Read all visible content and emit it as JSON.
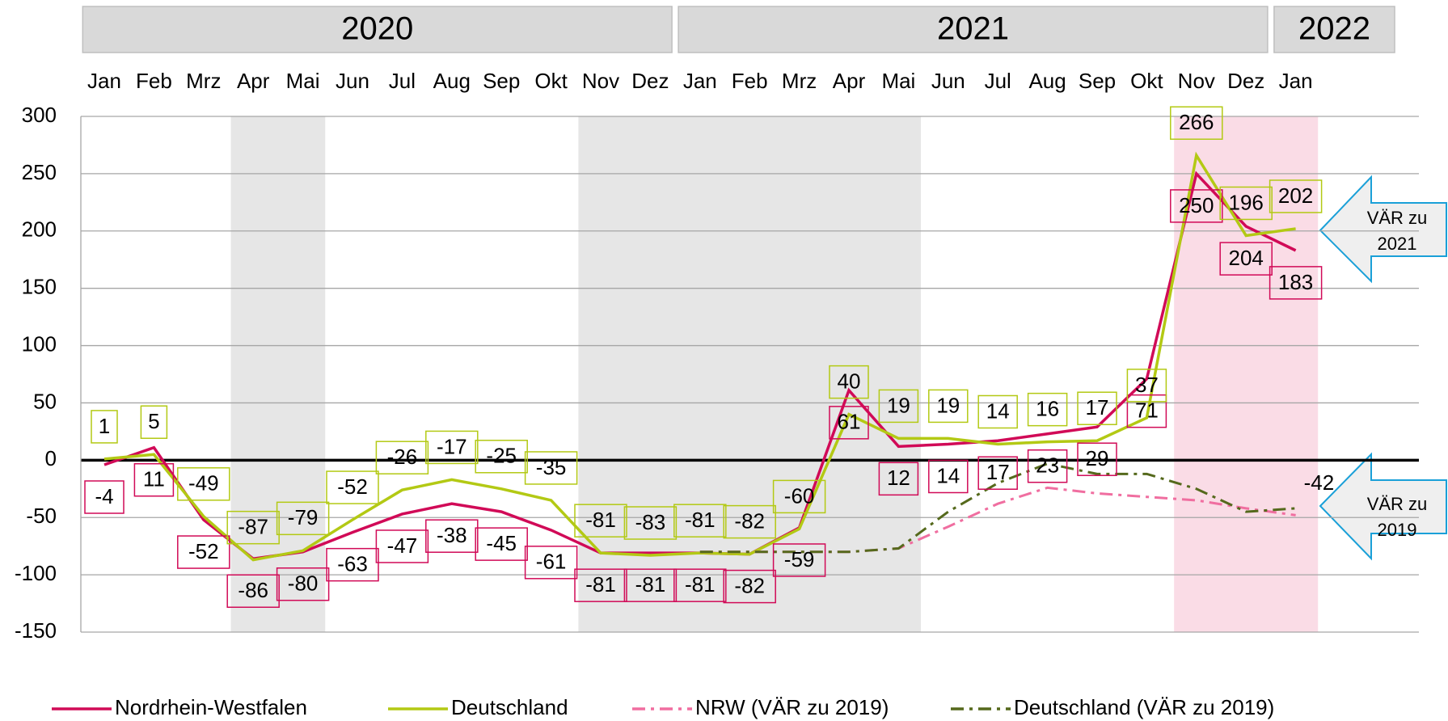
{
  "chart_data": {
    "type": "line",
    "categories": [
      "Jan",
      "Feb",
      "Mrz",
      "Apr",
      "Mai",
      "Jun",
      "Jul",
      "Aug",
      "Sep",
      "Okt",
      "Nov",
      "Dez",
      "Jan",
      "Feb",
      "Mrz",
      "Apr",
      "Mai",
      "Jun",
      "Jul",
      "Aug",
      "Sep",
      "Okt",
      "Nov",
      "Dez",
      "Jan"
    ],
    "years": [
      {
        "label": "2020",
        "start": 0,
        "end": 11
      },
      {
        "label": "2021",
        "start": 12,
        "end": 23
      },
      {
        "label": "2022",
        "start": 24,
        "end": 24
      }
    ],
    "shaded_ranges": [
      {
        "start": 3,
        "end": 4,
        "color": "#e6e6e6"
      },
      {
        "start": 10,
        "end": 16,
        "color": "#e6e6e6"
      },
      {
        "start": 22,
        "end": 24,
        "color": "#fadce6"
      }
    ],
    "series": [
      {
        "name": "Nordrhein-Westfalen",
        "color": "#d10a57",
        "style": "solid",
        "data_labels": "all",
        "values": [
          -4,
          11,
          -52,
          -86,
          -80,
          -63,
          -47,
          -38,
          -45,
          -61,
          -81,
          -81,
          -81,
          -82,
          -59,
          61,
          12,
          14,
          17,
          23,
          29,
          71,
          250,
          204,
          183
        ]
      },
      {
        "name": "Deutschland",
        "color": "#b3c914",
        "style": "solid",
        "data_labels": "all",
        "values": [
          1,
          5,
          -49,
          -87,
          -79,
          -52,
          -26,
          -17,
          -25,
          -35,
          -81,
          -83,
          -81,
          -82,
          -60,
          40,
          19,
          19,
          14,
          16,
          17,
          37,
          266,
          196,
          202
        ]
      },
      {
        "name": "NRW (VÄR zu 2019)",
        "color": "#f06ea0",
        "style": "dashdot",
        "data_labels": "none",
        "values": [
          null,
          null,
          null,
          null,
          null,
          null,
          null,
          null,
          null,
          null,
          null,
          null,
          -80,
          -80,
          -80,
          -80,
          -77,
          -58,
          -38,
          -24,
          -29,
          -32,
          -35,
          -42,
          -48
        ]
      },
      {
        "name": "Deutschland (VÄR zu 2019)",
        "color": "#55691c",
        "style": "dashdot",
        "data_labels": "last",
        "values": [
          null,
          null,
          null,
          null,
          null,
          null,
          null,
          null,
          null,
          null,
          null,
          null,
          -80,
          -80,
          -80,
          -80,
          -77,
          -45,
          -20,
          -3,
          -12,
          -12,
          -25,
          -45,
          -42
        ]
      }
    ],
    "ylim": [
      -150,
      300
    ],
    "yticks": [
      -150,
      -100,
      -50,
      0,
      50,
      100,
      150,
      200,
      250,
      300
    ],
    "grid": true,
    "annotations": [
      {
        "text": "VÄR zu 2021",
        "at": 200
      },
      {
        "text": "VÄR zu 2019",
        "at": -50
      }
    ]
  }
}
